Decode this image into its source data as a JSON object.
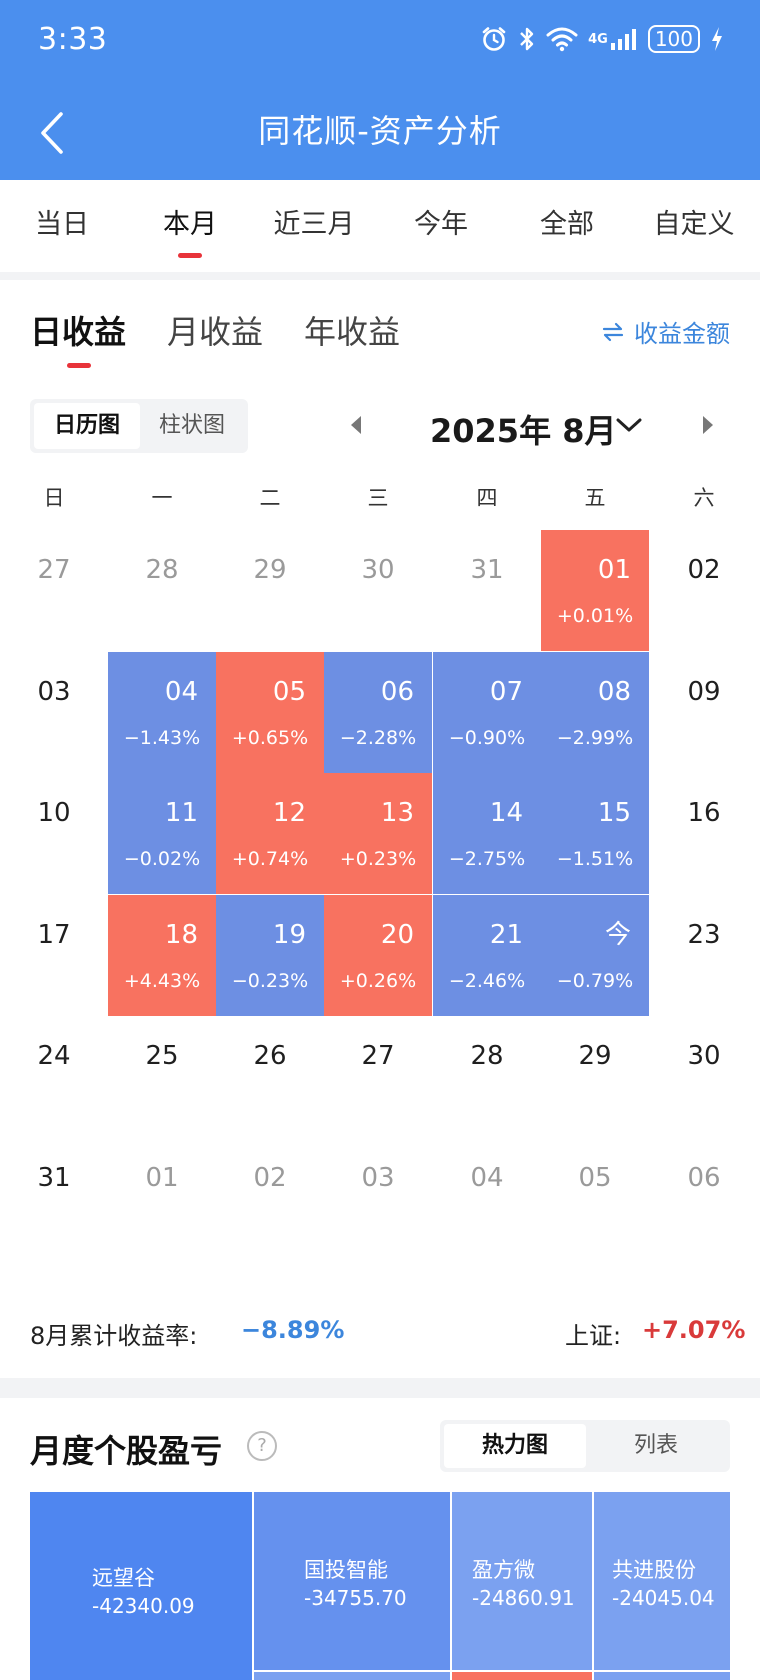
{
  "status_bar": {
    "time": "3:33",
    "network_label": "4G",
    "battery": "100"
  },
  "header": {
    "title": "同花顺-资产分析",
    "back_icon": "chevron-left-icon"
  },
  "period_tabs": [
    "当日",
    "本月",
    "近三月",
    "今年",
    "全部",
    "自定义"
  ],
  "period_tab_selected": "本月",
  "earnings_tabs": [
    "日收益",
    "月收益",
    "年收益"
  ],
  "earnings_tab_selected": "日收益",
  "amount_toggle": {
    "icon": "swap-arrows-icon",
    "label": "收益金额"
  },
  "view_modes": [
    "日历图",
    "柱状图"
  ],
  "view_mode_selected": "日历图",
  "calendar": {
    "month_label": "2025年 8月",
    "weekdays": [
      "日",
      "一",
      "二",
      "三",
      "四",
      "五",
      "六"
    ],
    "weeks": [
      [
        {
          "day": "27",
          "state": "dim"
        },
        {
          "day": "28",
          "state": "dim"
        },
        {
          "day": "29",
          "state": "dim"
        },
        {
          "day": "30",
          "state": "dim"
        },
        {
          "day": "31",
          "state": "dim"
        },
        {
          "day": "01",
          "state": "up",
          "pct": "+0.01%"
        },
        {
          "day": "02",
          "state": "plain"
        }
      ],
      [
        {
          "day": "03",
          "state": "plain"
        },
        {
          "day": "04",
          "state": "down",
          "pct": "−1.43%"
        },
        {
          "day": "05",
          "state": "up",
          "pct": "+0.65%"
        },
        {
          "day": "06",
          "state": "down",
          "pct": "−2.28%"
        },
        {
          "day": "07",
          "state": "down",
          "pct": "−0.90%"
        },
        {
          "day": "08",
          "state": "down",
          "pct": "−2.99%"
        },
        {
          "day": "09",
          "state": "plain"
        }
      ],
      [
        {
          "day": "10",
          "state": "plain"
        },
        {
          "day": "11",
          "state": "down",
          "pct": "−0.02%"
        },
        {
          "day": "12",
          "state": "up",
          "pct": "+0.74%"
        },
        {
          "day": "13",
          "state": "up",
          "pct": "+0.23%"
        },
        {
          "day": "14",
          "state": "down",
          "pct": "−2.75%"
        },
        {
          "day": "15",
          "state": "down",
          "pct": "−1.51%"
        },
        {
          "day": "16",
          "state": "plain"
        }
      ],
      [
        {
          "day": "17",
          "state": "plain"
        },
        {
          "day": "18",
          "state": "up",
          "pct": "+4.43%"
        },
        {
          "day": "19",
          "state": "down",
          "pct": "−0.23%"
        },
        {
          "day": "20",
          "state": "up",
          "pct": "+0.26%"
        },
        {
          "day": "21",
          "state": "down",
          "pct": "−2.46%"
        },
        {
          "day": "今",
          "state": "down",
          "pct": "−0.79%"
        },
        {
          "day": "23",
          "state": "plain"
        }
      ],
      [
        {
          "day": "24",
          "state": "plain"
        },
        {
          "day": "25",
          "state": "plain"
        },
        {
          "day": "26",
          "state": "plain"
        },
        {
          "day": "27",
          "state": "plain"
        },
        {
          "day": "28",
          "state": "plain"
        },
        {
          "day": "29",
          "state": "plain"
        },
        {
          "day": "30",
          "state": "plain"
        }
      ],
      [
        {
          "day": "31",
          "state": "plain"
        },
        {
          "day": "01",
          "state": "dim"
        },
        {
          "day": "02",
          "state": "dim"
        },
        {
          "day": "03",
          "state": "dim"
        },
        {
          "day": "04",
          "state": "dim"
        },
        {
          "day": "05",
          "state": "dim"
        },
        {
          "day": "06",
          "state": "dim"
        }
      ]
    ]
  },
  "summary": {
    "label": "8月累计收益率:",
    "value": "−8.89%",
    "index_label": "上证:",
    "index_value": "+7.07%"
  },
  "stock_pnl": {
    "title": "月度个股盈亏",
    "help_icon": "question-circle-icon",
    "view_modes": [
      "热力图",
      "列表"
    ],
    "view_mode_selected": "热力图",
    "tiles": [
      {
        "name": "远望谷",
        "value": "-42340.09"
      },
      {
        "name": "国投智能",
        "value": "-34755.70"
      },
      {
        "name": "盈方微",
        "value": "-24860.91"
      },
      {
        "name": "共进股份",
        "value": "-24045.04"
      }
    ]
  },
  "colors": {
    "brand": "#4b8fee",
    "gain": "#f87260",
    "loss": "#6d8fe3",
    "accent_blue": "#3c86dc",
    "accent_red": "#d93a3a"
  }
}
